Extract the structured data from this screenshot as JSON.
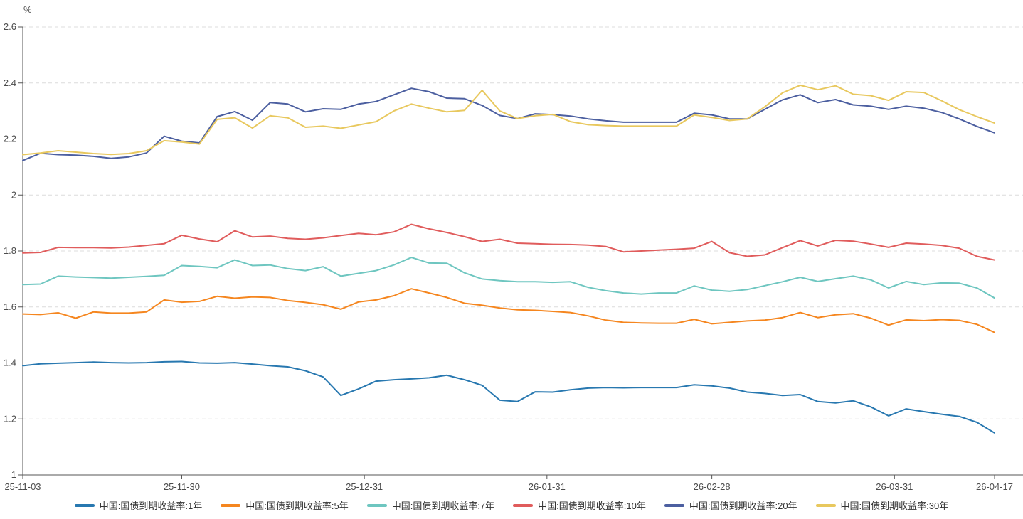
{
  "chart_data": {
    "type": "line",
    "title": "",
    "ylabel": "%",
    "xlabel": "",
    "ylim": [
      1,
      2.6
    ],
    "grid": "horizontal-dashed",
    "legend_position": "bottom",
    "y_ticks": [
      {
        "value": 1.0,
        "label": "1"
      },
      {
        "value": 1.2,
        "label": "1.2"
      },
      {
        "value": 1.4,
        "label": "1.4"
      },
      {
        "value": 1.6,
        "label": "1.6"
      },
      {
        "value": 1.8,
        "label": "1.8"
      },
      {
        "value": 2.0,
        "label": "2"
      },
      {
        "value": 2.2,
        "label": "2.2"
      },
      {
        "value": 2.4,
        "label": "2.4"
      },
      {
        "value": 2.6,
        "label": "2.6"
      }
    ],
    "x_ticks": [
      {
        "label": "25-11-03",
        "f": 0.0
      },
      {
        "label": "25-11-30",
        "f": 0.1636
      },
      {
        "label": "25-12-31",
        "f": 0.3515
      },
      {
        "label": "26-01-31",
        "f": 0.5394
      },
      {
        "label": "26-02-28",
        "f": 0.7091
      },
      {
        "label": "26-03-31",
        "f": 0.897
      },
      {
        "label": "26-04-17",
        "f": 1.0
      }
    ],
    "colors": {
      "axis": "#555555",
      "tick_text": "#4c4c4c",
      "grid": "#dcdcdc"
    },
    "series": [
      {
        "name": "中国:国债到期收益率:1年",
        "color": "#2878b0",
        "values": [
          1.39,
          1.397,
          1.399,
          1.401,
          1.403,
          1.401,
          1.4,
          1.401,
          1.404,
          1.405,
          1.4,
          1.399,
          1.401,
          1.396,
          1.39,
          1.386,
          1.372,
          1.35,
          1.284,
          1.307,
          1.335,
          1.34,
          1.343,
          1.347,
          1.356,
          1.34,
          1.32,
          1.267,
          1.262,
          1.297,
          1.296,
          1.304,
          1.31,
          1.312,
          1.311,
          1.312,
          1.312,
          1.312,
          1.322,
          1.318,
          1.31,
          1.296,
          1.291,
          1.284,
          1.287,
          1.262,
          1.257,
          1.265,
          1.243,
          1.211,
          1.236,
          1.226,
          1.217,
          1.209,
          1.188,
          1.15
        ]
      },
      {
        "name": "中国:国债到期收益率:5年",
        "color": "#f5861f",
        "values": [
          1.575,
          1.573,
          1.579,
          1.56,
          1.582,
          1.578,
          1.578,
          1.582,
          1.625,
          1.617,
          1.62,
          1.638,
          1.631,
          1.636,
          1.634,
          1.623,
          1.616,
          1.608,
          1.592,
          1.618,
          1.625,
          1.64,
          1.665,
          1.65,
          1.634,
          1.613,
          1.606,
          1.596,
          1.59,
          1.588,
          1.584,
          1.58,
          1.568,
          1.553,
          1.545,
          1.543,
          1.542,
          1.542,
          1.556,
          1.54,
          1.545,
          1.55,
          1.553,
          1.562,
          1.58,
          1.562,
          1.572,
          1.576,
          1.56,
          1.535,
          1.554,
          1.551,
          1.555,
          1.552,
          1.538,
          1.509
        ]
      },
      {
        "name": "中国:国债到期收益率:7年",
        "color": "#6ec6c0",
        "values": [
          1.68,
          1.682,
          1.71,
          1.707,
          1.705,
          1.703,
          1.706,
          1.709,
          1.713,
          1.748,
          1.745,
          1.74,
          1.768,
          1.748,
          1.75,
          1.737,
          1.73,
          1.744,
          1.71,
          1.72,
          1.73,
          1.75,
          1.777,
          1.757,
          1.756,
          1.722,
          1.7,
          1.694,
          1.69,
          1.69,
          1.688,
          1.69,
          1.67,
          1.658,
          1.65,
          1.646,
          1.65,
          1.65,
          1.675,
          1.66,
          1.656,
          1.662,
          1.676,
          1.69,
          1.706,
          1.691,
          1.701,
          1.71,
          1.697,
          1.668,
          1.691,
          1.68,
          1.686,
          1.685,
          1.668,
          1.632
        ]
      },
      {
        "name": "中国:国债到期收益率:10年",
        "color": "#e05c5c",
        "values": [
          1.793,
          1.795,
          1.813,
          1.812,
          1.812,
          1.811,
          1.814,
          1.82,
          1.826,
          1.856,
          1.843,
          1.833,
          1.872,
          1.85,
          1.853,
          1.845,
          1.842,
          1.847,
          1.855,
          1.863,
          1.858,
          1.868,
          1.895,
          1.879,
          1.866,
          1.851,
          1.834,
          1.842,
          1.828,
          1.826,
          1.824,
          1.823,
          1.821,
          1.816,
          1.797,
          1.8,
          1.803,
          1.806,
          1.81,
          1.834,
          1.794,
          1.781,
          1.786,
          1.812,
          1.837,
          1.818,
          1.838,
          1.835,
          1.825,
          1.813,
          1.828,
          1.825,
          1.82,
          1.81,
          1.781,
          1.768
        ]
      },
      {
        "name": "中国:国债到期收益率:20年",
        "color": "#4c5fa0",
        "values": [
          2.123,
          2.149,
          2.144,
          2.142,
          2.138,
          2.131,
          2.136,
          2.15,
          2.21,
          2.192,
          2.186,
          2.28,
          2.298,
          2.267,
          2.33,
          2.325,
          2.297,
          2.308,
          2.306,
          2.325,
          2.334,
          2.358,
          2.381,
          2.369,
          2.346,
          2.344,
          2.32,
          2.284,
          2.273,
          2.29,
          2.287,
          2.282,
          2.272,
          2.265,
          2.26,
          2.26,
          2.26,
          2.26,
          2.292,
          2.286,
          2.272,
          2.272,
          2.306,
          2.34,
          2.358,
          2.33,
          2.341,
          2.322,
          2.317,
          2.306,
          2.317,
          2.31,
          2.295,
          2.272,
          2.245,
          2.222
        ]
      },
      {
        "name": "中国:国债到期收益率:30年",
        "color": "#e8c85e",
        "values": [
          2.144,
          2.15,
          2.158,
          2.153,
          2.148,
          2.145,
          2.148,
          2.158,
          2.194,
          2.189,
          2.182,
          2.27,
          2.276,
          2.239,
          2.283,
          2.276,
          2.242,
          2.246,
          2.238,
          2.25,
          2.262,
          2.3,
          2.325,
          2.31,
          2.297,
          2.302,
          2.374,
          2.3,
          2.273,
          2.283,
          2.288,
          2.262,
          2.251,
          2.248,
          2.246,
          2.246,
          2.246,
          2.246,
          2.286,
          2.277,
          2.266,
          2.272,
          2.315,
          2.365,
          2.392,
          2.376,
          2.39,
          2.36,
          2.355,
          2.338,
          2.369,
          2.366,
          2.337,
          2.305,
          2.28,
          2.257
        ]
      }
    ]
  }
}
